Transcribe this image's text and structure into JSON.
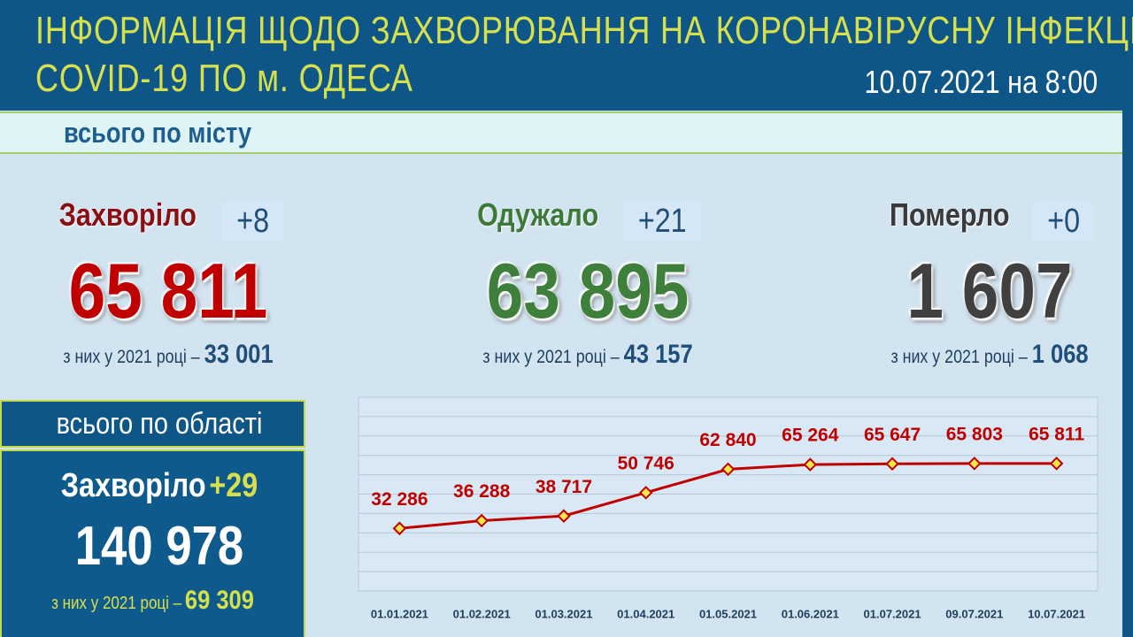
{
  "header": {
    "title_line1": "ІНФОРМАЦІЯ ЩОДО ЗАХВОРЮВАННЯ НА КОРОНАВІРУСНУ ІНФЕКЦІЮ",
    "title_line2": "COVID-19 ПО м. ОДЕСА",
    "date": "10.07.2021 на 8:00"
  },
  "city": {
    "label": "всього по місту",
    "stats": [
      {
        "label": "Захворіло",
        "delta": "+8",
        "total": "65 811",
        "year_note": "з них у 2021 році –",
        "year_value": "33 001"
      },
      {
        "label": "Одужало",
        "delta": "+21",
        "total": "63 895",
        "year_note": "з них у 2021 році –",
        "year_value": "43 157"
      },
      {
        "label": "Померло",
        "delta": "+0",
        "total": "1 607",
        "year_note": "з них у 2021 році –",
        "year_value": "1 068"
      }
    ]
  },
  "region": {
    "label": "всього по області",
    "stat_label": "Захворіло",
    "delta": "+29",
    "total": "140 978",
    "year_note": "з них у 2021 році –",
    "year_value": "69 309"
  },
  "chart_data": {
    "type": "line",
    "categories": [
      "01.01.2021",
      "01.02.2021",
      "01.03.2021",
      "01.04.2021",
      "01.05.2021",
      "01.06.2021",
      "01.07.2021",
      "09.07.2021",
      "10.07.2021"
    ],
    "series": [
      {
        "color": "#c00000",
        "values": [
          32286,
          36288,
          38717,
          50746,
          62840,
          65264,
          65647,
          65803,
          65811
        ],
        "value_labels": [
          "32 286",
          "36 288",
          "38 717",
          "50 746",
          "62 840",
          "65 264",
          "65 647",
          "65 803",
          "65 811"
        ]
      }
    ],
    "ylim": [
      0,
      100000
    ],
    "yticks": [
      0,
      10000,
      20000,
      30000,
      40000,
      50000,
      60000,
      70000,
      80000,
      90000,
      100000
    ],
    "grid": true
  }
}
